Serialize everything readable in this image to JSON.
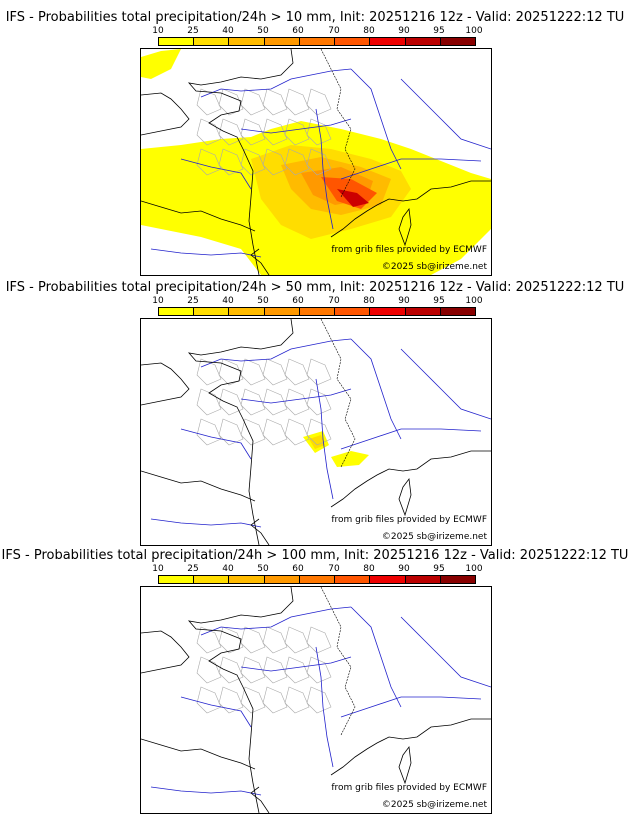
{
  "panels": [
    {
      "title": "IFS - Probabilities total precipitation/24h > 10 mm, Init: 20251216 12z - Valid: 20251222:12 TU",
      "threshold": "10 mm",
      "coverage": "high"
    },
    {
      "title": "IFS - Probabilities total precipitation/24h > 50 mm, Init: 20251216 12z - Valid: 20251222:12 TU",
      "threshold": "50 mm",
      "coverage": "low"
    },
    {
      "title": "IFS - Probabilities total precipitation/24h > 100 mm, Init: 20251216 12z - Valid: 20251222:12 TU",
      "threshold": "100 mm",
      "coverage": "none"
    }
  ],
  "legend": {
    "labels": [
      "10",
      "25",
      "40",
      "50",
      "60",
      "70",
      "80",
      "90",
      "95",
      "100"
    ],
    "colors": [
      "#ffff00",
      "#ffdd00",
      "#ffbb00",
      "#ff9900",
      "#ff7700",
      "#ff5500",
      "#ee0000",
      "#bb0000",
      "#880000",
      "#550000"
    ]
  },
  "credits": {
    "source": "from grib files provided by ECMWF",
    "copyright": "©2025 sb@irizeme.net"
  },
  "map_colors": {
    "coast": "#000000",
    "rivers": "#2222cc",
    "departments": "#aaaaaa"
  }
}
